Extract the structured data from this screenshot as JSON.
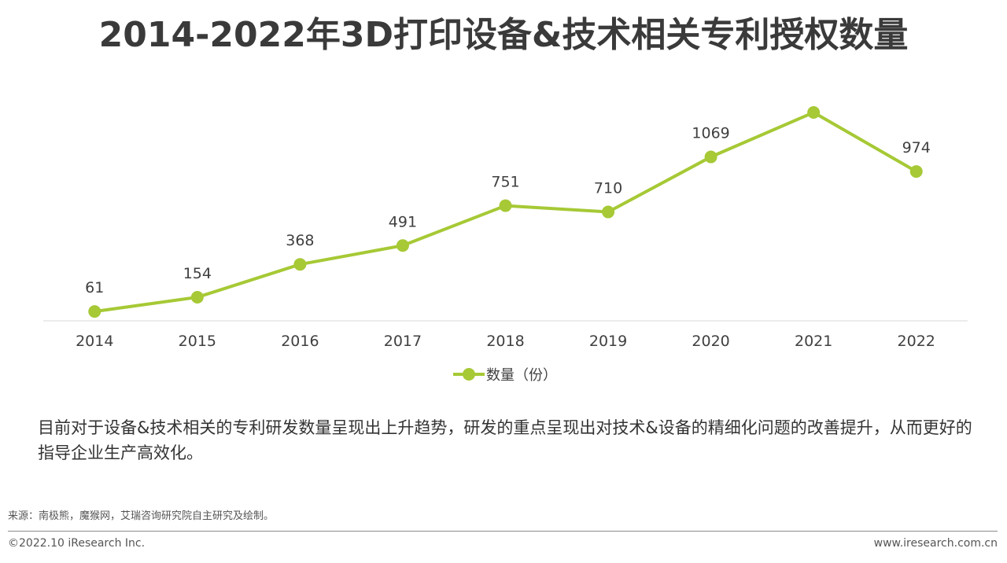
{
  "header": {
    "title": "2014-2022年3D打印设备&技术相关专利授权数量"
  },
  "chart_data": {
    "type": "line",
    "categories": [
      "2014",
      "2015",
      "2016",
      "2017",
      "2018",
      "2019",
      "2020",
      "2021",
      "2022"
    ],
    "series": [
      {
        "name": "数量（份）",
        "values": [
          61,
          154,
          368,
          491,
          751,
          710,
          1069,
          1359,
          974
        ],
        "color": "#a6c935"
      }
    ],
    "data_labels": true,
    "legend_position": "bottom",
    "grid": false
  },
  "summary": {
    "text": "目前对于设备&技术相关的专利研发数量呈现出上升趋势，研发的重点呈现出对技术&设备的精细化问题的改善提升，从而更好的指导企业生产高效化。"
  },
  "source": {
    "text": "来源：南极熊，魔猴网，艾瑞咨询研究院自主研究及绘制。"
  },
  "footer": {
    "copyright": "©2022.10 iResearch Inc.",
    "website": "www.iresearch.com.cn"
  },
  "colors": {
    "accent": "#a6c935",
    "axis": "#d9d9d9",
    "text": "#333333"
  }
}
